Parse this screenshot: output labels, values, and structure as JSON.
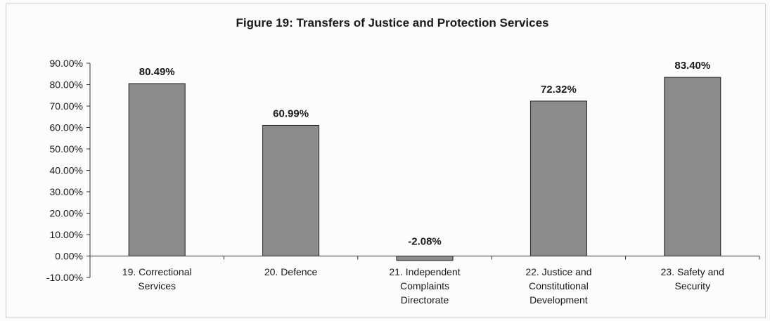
{
  "chart_data": {
    "type": "bar",
    "title": "Figure 19: Transfers of Justice and Protection Services",
    "categories": [
      [
        "19. Correctional",
        "Services"
      ],
      [
        "20. Defence"
      ],
      [
        "21. Independent",
        "Complaints",
        "Directorate"
      ],
      [
        "22. Justice and",
        "Constitutional",
        "Development"
      ],
      [
        "23. Safety and",
        "Security"
      ]
    ],
    "values": [
      80.49,
      60.99,
      -2.08,
      72.32,
      83.4
    ],
    "data_labels": [
      "80.49%",
      "60.99%",
      "-2.08%",
      "72.32%",
      "83.40%"
    ],
    "ylim": [
      -10,
      90
    ],
    "yticks": [
      90,
      80,
      70,
      60,
      50,
      40,
      30,
      20,
      10,
      0,
      -10
    ],
    "ytick_labels": [
      "90.00%",
      "80.00%",
      "70.00%",
      "60.00%",
      "50.00%",
      "40.00%",
      "30.00%",
      "20.00%",
      "10.00%",
      "0.00%",
      "-10.00%"
    ],
    "grid": false,
    "bar_color": "#8c8c8c"
  }
}
